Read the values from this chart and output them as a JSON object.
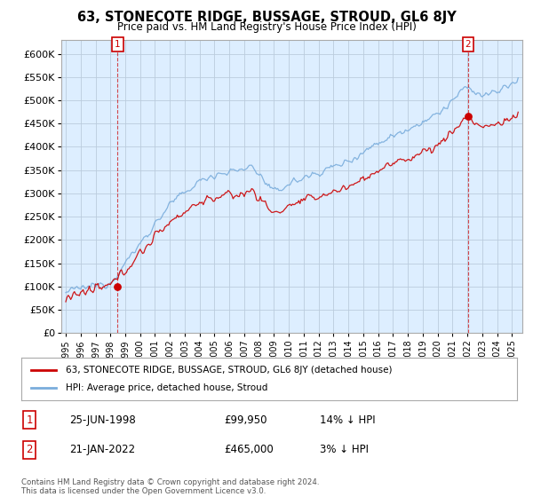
{
  "title": "63, STONECOTE RIDGE, BUSSAGE, STROUD, GL6 8JY",
  "subtitle": "Price paid vs. HM Land Registry's House Price Index (HPI)",
  "ylim": [
    0,
    630000
  ],
  "xlim_start": 1994.7,
  "xlim_end": 2025.7,
  "transaction1": {
    "date": 1998.48,
    "price": 99950,
    "label": "1",
    "date_str": "25-JUN-1998",
    "price_str": "£99,950",
    "hpi_pct": "14% ↓ HPI"
  },
  "transaction2": {
    "date": 2022.06,
    "price": 465000,
    "label": "2",
    "date_str": "21-JAN-2022",
    "price_str": "£465,000",
    "hpi_pct": "3% ↓ HPI"
  },
  "line_color_red": "#cc0000",
  "line_color_blue": "#7aaddc",
  "marker_box_color": "#cc0000",
  "chart_bg_color": "#ddeeff",
  "legend_label_red": "63, STONECOTE RIDGE, BUSSAGE, STROUD, GL6 8JY (detached house)",
  "legend_label_blue": "HPI: Average price, detached house, Stroud",
  "footnote": "Contains HM Land Registry data © Crown copyright and database right 2024.\nThis data is licensed under the Open Government Licence v3.0.",
  "table_row1": [
    "1",
    "25-JUN-1998",
    "£99,950",
    "14% ↓ HPI"
  ],
  "table_row2": [
    "2",
    "21-JAN-2022",
    "£465,000",
    "3% ↓ HPI"
  ],
  "background_color": "#ffffff",
  "grid_color": "#bbccdd"
}
